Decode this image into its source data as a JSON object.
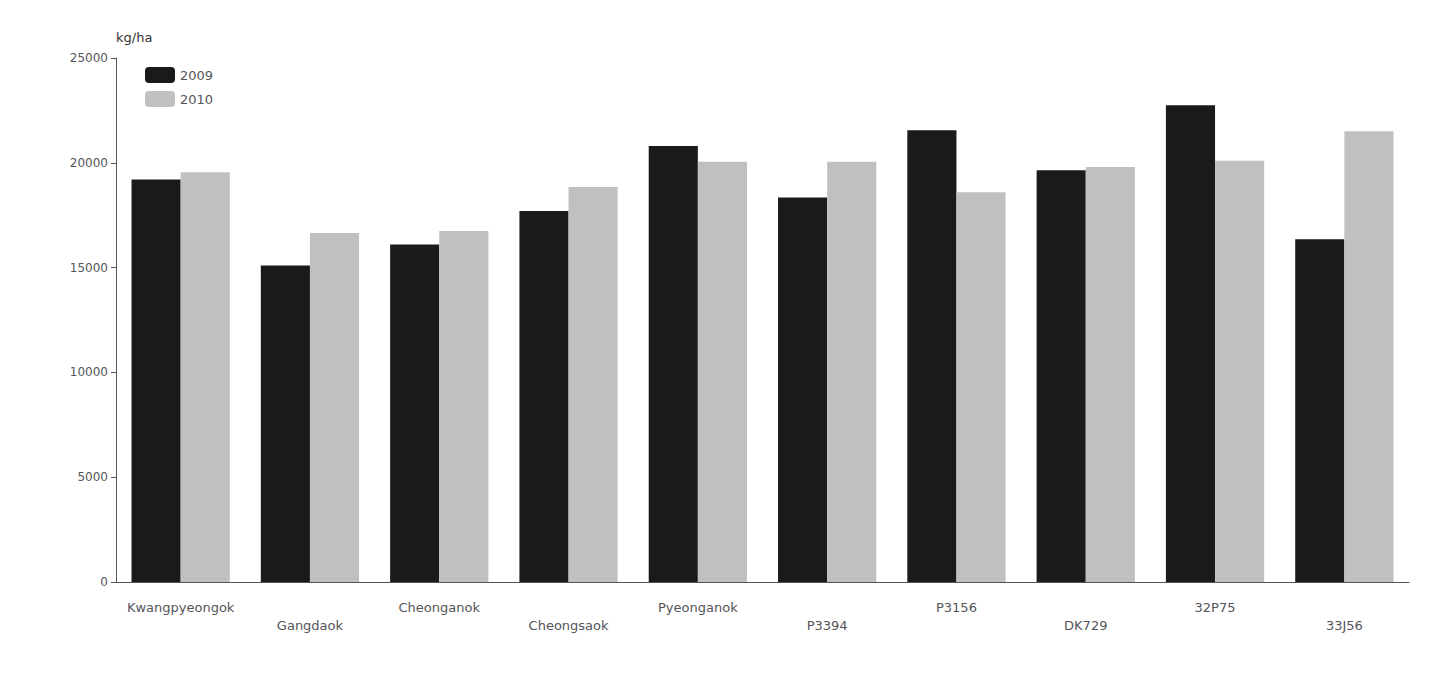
{
  "chart_data": {
    "type": "bar",
    "ylabel": "kg/ha",
    "categories": [
      "Kwangpyeongok",
      "Gangdaok",
      "Cheonganok",
      "Cheongsaok",
      "Pyeonganok",
      "P3394",
      "P3156",
      "DK729",
      "32P75",
      "33J56"
    ],
    "series": [
      {
        "name": "2009",
        "color": "#1a1a1a",
        "values": [
          19200,
          15100,
          16100,
          17700,
          20800,
          18350,
          21550,
          19650,
          22750,
          16350
        ]
      },
      {
        "name": "2010",
        "color": "#c0c0c0",
        "values": [
          19550,
          16650,
          16750,
          18850,
          20050,
          20050,
          18600,
          19800,
          20100,
          21500
        ]
      }
    ],
    "ylim": [
      0,
      25000
    ],
    "yticks": [
      0,
      5000,
      10000,
      15000,
      20000,
      25000
    ],
    "legend": "upper left",
    "grid": false
  }
}
